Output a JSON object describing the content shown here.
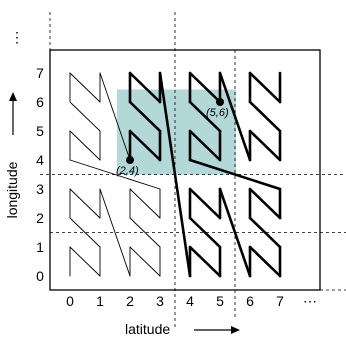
{
  "x_axis": {
    "title": "latitude",
    "ticks": [
      "0",
      "1",
      "2",
      "3",
      "4",
      "5",
      "6",
      "7"
    ],
    "more": "⋯"
  },
  "y_axis": {
    "title": "longitude",
    "ticks": [
      "0",
      "1",
      "2",
      "3",
      "4",
      "5",
      "6",
      "7"
    ],
    "more": "⋮"
  },
  "highlight_region": {
    "x_range": [
      1.5,
      5.5
    ],
    "y_range": [
      3.5,
      6.5
    ],
    "color": "#b2d8d8"
  },
  "points": [
    {
      "label": "(2,4)",
      "x": 2,
      "y": 4
    },
    {
      "label": "(5,6)",
      "x": 5,
      "y": 6
    }
  ],
  "dashed_lines": {
    "vertical": [
      3.5,
      5.5
    ],
    "horizontal": [
      3.5,
      1.5
    ]
  },
  "colors": {
    "highlight": "#b2d8d8",
    "curve": "#000000",
    "frame": "#000000"
  }
}
